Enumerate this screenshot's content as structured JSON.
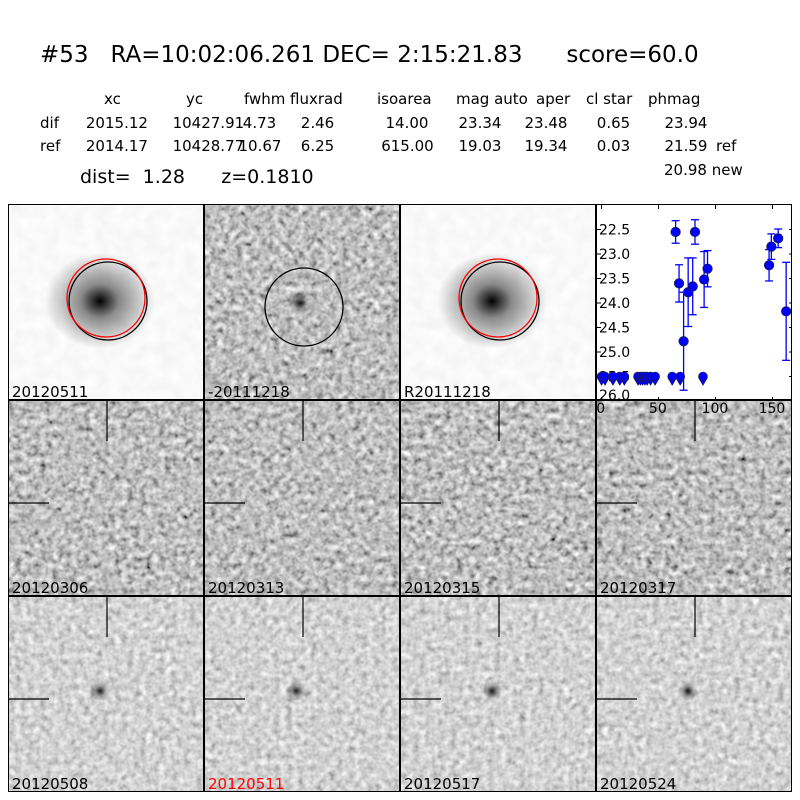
{
  "header": {
    "title": "#53   RA=10:02:06.261 DEC= 2:15:21.83      score=60.0",
    "columns": [
      "xc",
      "yc",
      "fwhm",
      "fluxrad",
      "isoarea",
      "mag auto",
      "aper",
      "cl star",
      "phmag"
    ],
    "rows": [
      {
        "label": "dif",
        "values": [
          "2015.12",
          "10427.91",
          "4.73",
          "2.46",
          "14.00",
          "23.34",
          "23.48",
          "0.65",
          "23.94"
        ],
        "suffix": ""
      },
      {
        "label": "ref",
        "values": [
          "2014.17",
          "10428.77",
          "10.67",
          "6.25",
          "615.00",
          "19.03",
          "19.34",
          "0.03",
          "21.59"
        ],
        "suffix": "ref"
      }
    ],
    "new_phmag": "20.98 new",
    "dist": "dist=  1.28",
    "z": "z=0.1810"
  },
  "stamps": [
    {
      "label": "20120511",
      "label_color": "#000000",
      "kind": "new"
    },
    {
      "label": "-20111218",
      "label_color": "#000000",
      "kind": "diff"
    },
    {
      "label": "R20111218",
      "label_color": "#000000",
      "kind": "ref"
    },
    {
      "label": "20120306",
      "label_color": "#000000",
      "kind": "epoch"
    },
    {
      "label": "20120313",
      "label_color": "#000000",
      "kind": "epoch"
    },
    {
      "label": "20120315",
      "label_color": "#000000",
      "kind": "epoch"
    },
    {
      "label": "20120317",
      "label_color": "#000000",
      "kind": "epoch"
    },
    {
      "label": "20120508",
      "label_color": "#000000",
      "kind": "epoch"
    },
    {
      "label": "20120511",
      "label_color": "#ff0000",
      "kind": "epoch"
    },
    {
      "label": "20120517",
      "label_color": "#000000",
      "kind": "epoch"
    },
    {
      "label": "20120524",
      "label_color": "#000000",
      "kind": "epoch"
    }
  ],
  "chart_data": {
    "type": "scatter",
    "title": "",
    "xlabel": "",
    "ylabel": "",
    "xlim": [
      -4,
      168
    ],
    "ylim": [
      26.0,
      22.0
    ],
    "y_inverted": true,
    "xticks": [
      "0",
      "50",
      "100",
      "150"
    ],
    "xtick_values": [
      0,
      50,
      100,
      150
    ],
    "yticks": [
      "22.5",
      "23.0",
      "23.5",
      "24.0",
      "24.5",
      "25.0",
      "25.5",
      "26.0"
    ],
    "ytick_values": [
      22.5,
      23.0,
      23.5,
      24.0,
      24.5,
      25.0,
      25.5,
      26.0
    ],
    "color": "#0000ff",
    "detections": [
      {
        "x": 65,
        "y": 22.55,
        "err": 0.23
      },
      {
        "x": 68,
        "y": 23.6,
        "err": 0.38
      },
      {
        "x": 72,
        "y": 24.78,
        "err": 1.0
      },
      {
        "x": 76,
        "y": 23.78,
        "err": 0.7
      },
      {
        "x": 80,
        "y": 23.66,
        "err": 0.58
      },
      {
        "x": 82,
        "y": 22.55,
        "err": 0.25
      },
      {
        "x": 90,
        "y": 23.52,
        "err": 0.57
      },
      {
        "x": 93,
        "y": 23.3,
        "err": 0.37
      },
      {
        "x": 147,
        "y": 23.23,
        "err": 0.32
      },
      {
        "x": 149,
        "y": 22.85,
        "err": 0.26
      },
      {
        "x": 155,
        "y": 22.68,
        "err": 0.19
      },
      {
        "x": 162,
        "y": 24.17,
        "err": 1.0
      }
    ],
    "upper_limits": {
      "y": 25.5,
      "x": [
        0,
        3,
        10,
        16,
        20,
        32,
        34,
        36,
        38,
        40,
        43,
        47,
        62,
        69,
        89
      ]
    }
  }
}
